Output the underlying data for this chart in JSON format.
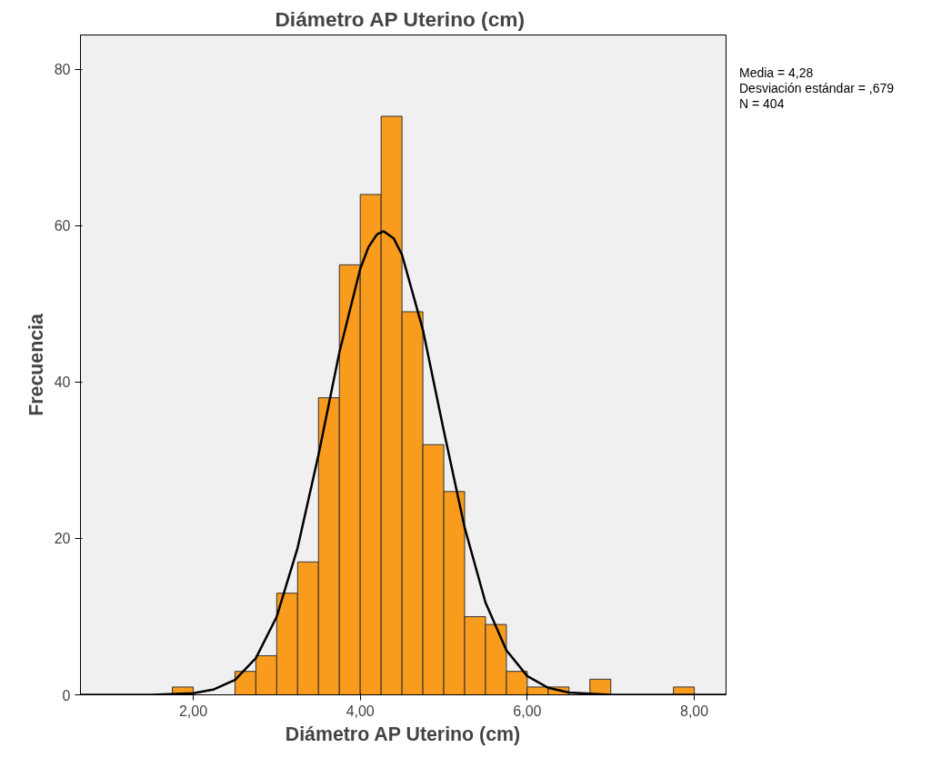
{
  "chart_data": {
    "type": "histogram",
    "title": "Diámetro AP Uterino  (cm)",
    "xlabel": "Diámetro AP Uterino (cm)",
    "ylabel": "Frecuencia",
    "bins": [
      1.75,
      2.0,
      2.25,
      2.5,
      2.75,
      3.0,
      3.25,
      3.5,
      3.75,
      4.0,
      4.25,
      4.5,
      4.75,
      5.0,
      5.25,
      5.5,
      5.75,
      6.0,
      6.25,
      6.5,
      6.75,
      7.0,
      7.25,
      7.5,
      7.75,
      8.0
    ],
    "values": [
      1,
      0,
      0,
      3,
      5,
      13,
      17,
      38,
      55,
      64,
      74,
      49,
      32,
      26,
      10,
      9,
      3,
      1,
      1,
      0,
      2,
      0,
      0,
      0,
      1
    ],
    "color": "#f99b1c",
    "series": [
      {
        "type": "line",
        "color": "#000000",
        "x": [
          0.65,
          1.0,
          1.5,
          2.0,
          2.25,
          2.5,
          2.75,
          3.0,
          3.25,
          3.5,
          3.75,
          4.0,
          4.1,
          4.2,
          4.28,
          4.4,
          4.5,
          4.75,
          5.0,
          5.25,
          5.5,
          5.75,
          6.0,
          6.25,
          6.5,
          7.0,
          7.5,
          8.0,
          8.38
        ],
        "values": [
          0,
          0,
          0,
          0.2,
          0.7,
          1.9,
          4.7,
          10.0,
          18.8,
          30.7,
          43.8,
          54.5,
          57.3,
          58.9,
          59.3,
          58.4,
          56.3,
          46.7,
          33.8,
          21.4,
          11.8,
          5.7,
          2.4,
          0.9,
          0.3,
          0,
          0,
          0,
          0
        ]
      }
    ],
    "xlim": [
      0.65,
      8.38
    ],
    "ylim": [
      0,
      84.4
    ],
    "xticks": [
      {
        "value": 2,
        "label": "2,00"
      },
      {
        "value": 4,
        "label": "4,00"
      },
      {
        "value": 6,
        "label": "6,00"
      },
      {
        "value": 8,
        "label": "8,00"
      }
    ],
    "yticks": [
      0,
      20,
      40,
      60,
      80
    ],
    "grid": false,
    "annotations": [
      "Media = 4,28",
      "Desviación estándar = ,679",
      "N = 404"
    ]
  }
}
